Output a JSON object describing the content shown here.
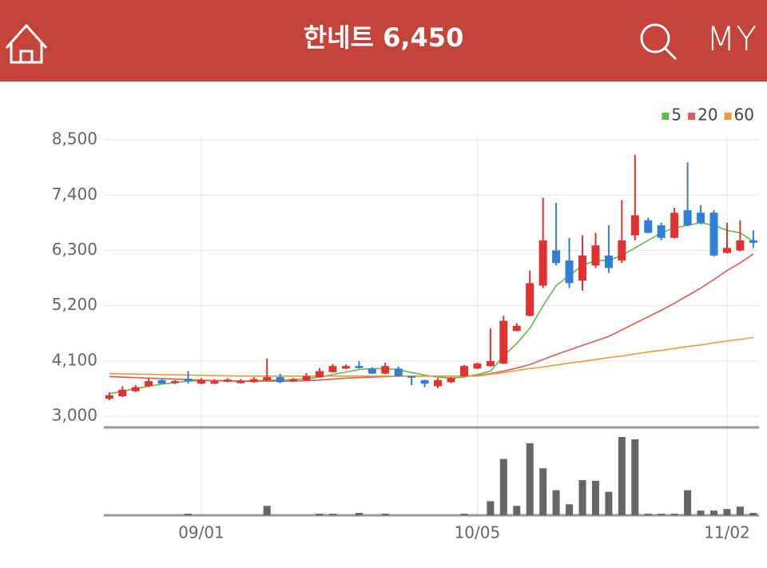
{
  "header": {
    "title": "한네트 6,450",
    "menu": "MY"
  },
  "chart_data": {
    "type": "candlestick",
    "categories": [
      null,
      null,
      null,
      null,
      null,
      null,
      null,
      "09/01",
      null,
      null,
      null,
      null,
      null,
      null,
      null,
      null,
      null,
      null,
      null,
      null,
      null,
      null,
      null,
      null,
      null,
      null,
      null,
      null,
      "10/05",
      null,
      null,
      null,
      null,
      null,
      null,
      null,
      null,
      null,
      null,
      null,
      null,
      null,
      null,
      null,
      null,
      null,
      null,
      "11/02",
      null,
      null
    ],
    "open": [
      3350,
      3400,
      3500,
      3600,
      3720,
      3660,
      3750,
      3650,
      3650,
      3690,
      3660,
      3680,
      3720,
      3780,
      3700,
      3720,
      3780,
      3880,
      3950,
      4000,
      3950,
      3850,
      3950,
      3800,
      3720,
      3600,
      3680,
      3800,
      3950,
      4000,
      4050,
      4700,
      5000,
      5600,
      6300,
      6100,
      5700,
      6000,
      6200,
      6100,
      6600,
      6900,
      6800,
      6550,
      7100,
      7050,
      7050,
      6250,
      6300,
      6500
    ],
    "high": [
      3480,
      3600,
      3620,
      3760,
      3740,
      3720,
      3900,
      3760,
      3740,
      3760,
      3740,
      3780,
      4150,
      3850,
      3760,
      3860,
      3960,
      4040,
      4030,
      4100,
      3980,
      4070,
      3990,
      3800,
      3730,
      3760,
      3780,
      4020,
      4070,
      4750,
      5000,
      4850,
      5900,
      7350,
      7250,
      6550,
      6600,
      6650,
      6800,
      7300,
      8200,
      6950,
      6850,
      7150,
      8050,
      7200,
      7100,
      6850,
      6900,
      6700
    ],
    "low": [
      3320,
      3380,
      3480,
      3580,
      3640,
      3640,
      3650,
      3640,
      3640,
      3680,
      3650,
      3670,
      3700,
      3660,
      3690,
      3710,
      3770,
      3870,
      3940,
      3950,
      3840,
      3840,
      3790,
      3620,
      3580,
      3560,
      3660,
      3790,
      3940,
      3990,
      4040,
      4690,
      4990,
      5550,
      6000,
      5550,
      5500,
      5950,
      5850,
      6050,
      6500,
      6640,
      6500,
      6540,
      6780,
      6820,
      6180,
      6240,
      6280,
      6350
    ],
    "close": [
      3420,
      3530,
      3580,
      3700,
      3650,
      3700,
      3700,
      3720,
      3700,
      3730,
      3700,
      3740,
      3780,
      3680,
      3740,
      3800,
      3900,
      4000,
      4000,
      3960,
      3850,
      4000,
      3800,
      3780,
      3650,
      3720,
      3760,
      4000,
      4050,
      4100,
      4900,
      4800,
      5650,
      6500,
      6050,
      5650,
      6200,
      6400,
      5950,
      6500,
      7000,
      6650,
      6550,
      7050,
      6800,
      6850,
      6200,
      6350,
      6500,
      6450
    ],
    "up_color": "#e0322f",
    "down_color": "#2f7ed8",
    "series": [
      {
        "name": "5",
        "color": "#5cbf4a",
        "values": [
          3450,
          3500,
          3550,
          3600,
          3640,
          3670,
          3700,
          3710,
          3710,
          3710,
          3700,
          3700,
          3720,
          3720,
          3730,
          3750,
          3780,
          3830,
          3880,
          3930,
          3950,
          3950,
          3930,
          3870,
          3820,
          3780,
          3760,
          3780,
          3830,
          3900,
          4200,
          4450,
          4750,
          5200,
          5600,
          5800,
          6000,
          6100,
          6100,
          6200,
          6350,
          6500,
          6650,
          6750,
          6800,
          6850,
          6800,
          6700,
          6650,
          6480
        ]
      },
      {
        "name": "20",
        "color": "#e05a55",
        "values": [
          3790,
          3780,
          3770,
          3760,
          3750,
          3740,
          3730,
          3720,
          3710,
          3700,
          3700,
          3700,
          3700,
          3700,
          3700,
          3710,
          3720,
          3740,
          3760,
          3770,
          3780,
          3790,
          3800,
          3800,
          3800,
          3800,
          3800,
          3800,
          3810,
          3850,
          3900,
          3960,
          4030,
          4130,
          4230,
          4320,
          4410,
          4500,
          4590,
          4720,
          4850,
          4980,
          5110,
          5250,
          5400,
          5550,
          5720,
          5900,
          6050,
          6230
        ]
      },
      {
        "name": "60",
        "color": "#ef9a3a",
        "values": [
          3850,
          3845,
          3840,
          3835,
          3830,
          3825,
          3820,
          3815,
          3810,
          3805,
          3800,
          3800,
          3800,
          3800,
          3800,
          3800,
          3800,
          3800,
          3800,
          3800,
          3800,
          3800,
          3800,
          3800,
          3800,
          3800,
          3800,
          3800,
          3800,
          3840,
          3870,
          3910,
          3950,
          3980,
          4020,
          4060,
          4090,
          4130,
          4170,
          4200,
          4240,
          4280,
          4310,
          4350,
          4390,
          4420,
          4460,
          4500,
          4530,
          4570
        ]
      }
    ],
    "ylim": [
      2780,
      8580
    ],
    "yticks": [
      {
        "value": 3000,
        "label": "3,000"
      },
      {
        "value": 4100,
        "label": "4,100"
      },
      {
        "value": 5200,
        "label": "5,200"
      },
      {
        "value": 6300,
        "label": "6,300"
      },
      {
        "value": 7400,
        "label": "7,400"
      },
      {
        "value": 8500,
        "label": "8,500"
      }
    ],
    "grid": true,
    "legend": "top-right",
    "volume": [
      0,
      0,
      0,
      0,
      0,
      0,
      2,
      0,
      0,
      0,
      0,
      0,
      12,
      0,
      0,
      0,
      2,
      2,
      0,
      3,
      0,
      2,
      0,
      0,
      0,
      0,
      0,
      2,
      0,
      18,
      72,
      12,
      92,
      60,
      32,
      14,
      45,
      44,
      30,
      100,
      97,
      2,
      2,
      2,
      32,
      6,
      6,
      8,
      11,
      3
    ],
    "volume_color": "#666666",
    "volume_ylim": [
      0,
      100
    ]
  }
}
